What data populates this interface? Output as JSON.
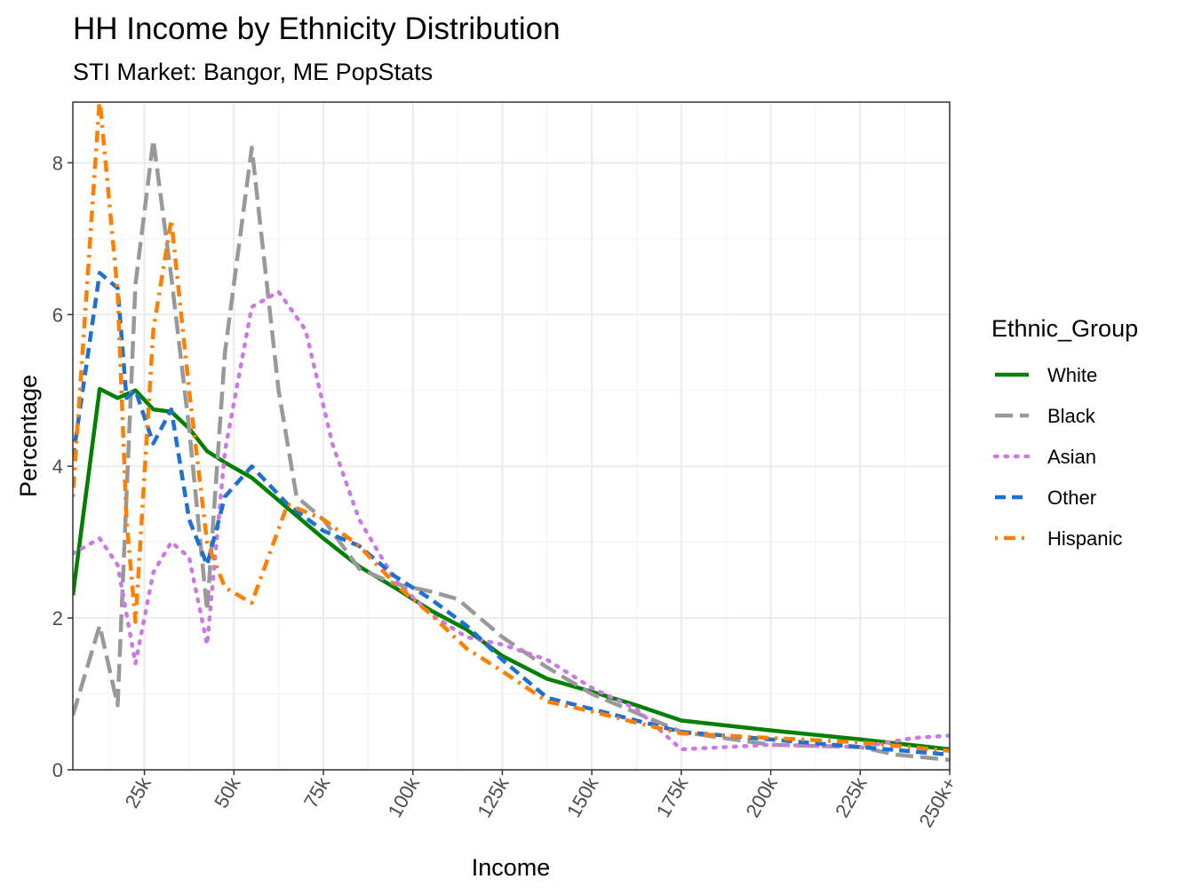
{
  "chart_data": {
    "type": "line",
    "title": "HH Income by Ethnicity Distribution",
    "subtitle": "STI Market: Bangor, ME PopStats",
    "xlabel": "Income",
    "ylabel": "Percentage",
    "xlim": [
      5,
      250
    ],
    "ylim": [
      0,
      8.8
    ],
    "x_ticks": [
      25,
      50,
      75,
      100,
      125,
      150,
      175,
      200,
      225,
      250
    ],
    "x_tick_labels": [
      "25k",
      "50k",
      "75k",
      "100k",
      "125k",
      "150k",
      "175k",
      "200k",
      "225k",
      "250k+"
    ],
    "y_ticks": [
      0,
      2,
      4,
      6,
      8
    ],
    "y_tick_labels": [
      "0",
      "2",
      "4",
      "6",
      "8"
    ],
    "grid": true,
    "legend": {
      "title": "Ethnic_Group",
      "position": "right"
    },
    "series": [
      {
        "name": "White",
        "color": "#008000",
        "dash": "solid",
        "points": [
          [
            5,
            2.3
          ],
          [
            12.5,
            5.02
          ],
          [
            17.5,
            4.9
          ],
          [
            22.5,
            5.0
          ],
          [
            27.5,
            4.75
          ],
          [
            32.5,
            4.72
          ],
          [
            37.5,
            4.5
          ],
          [
            42.5,
            4.2
          ],
          [
            47.5,
            4.05
          ],
          [
            55,
            3.85
          ],
          [
            65,
            3.45
          ],
          [
            75,
            3.05
          ],
          [
            85,
            2.68
          ],
          [
            95,
            2.4
          ],
          [
            105,
            2.1
          ],
          [
            115,
            1.85
          ],
          [
            125,
            1.5
          ],
          [
            137.5,
            1.2
          ],
          [
            150,
            1.03
          ],
          [
            162.5,
            0.85
          ],
          [
            175,
            0.65
          ],
          [
            200,
            0.52
          ],
          [
            225,
            0.4
          ],
          [
            250,
            0.27
          ]
        ]
      },
      {
        "name": "Black",
        "color": "#999999",
        "dash": "longdash",
        "points": [
          [
            5,
            0.72
          ],
          [
            12.5,
            1.9
          ],
          [
            17.5,
            0.85
          ],
          [
            22.5,
            6.4
          ],
          [
            27.5,
            8.3
          ],
          [
            32.5,
            6.5
          ],
          [
            37.5,
            4.5
          ],
          [
            42.5,
            2.1
          ],
          [
            47.5,
            5.5
          ],
          [
            55,
            8.2
          ],
          [
            62.5,
            5.0
          ],
          [
            67.5,
            3.6
          ],
          [
            75,
            3.3
          ],
          [
            85,
            2.65
          ],
          [
            95,
            2.45
          ],
          [
            105,
            2.35
          ],
          [
            112.5,
            2.25
          ],
          [
            125,
            1.75
          ],
          [
            137.5,
            1.35
          ],
          [
            150,
            1.0
          ],
          [
            162.5,
            0.75
          ],
          [
            175,
            0.5
          ],
          [
            200,
            0.33
          ],
          [
            225,
            0.3
          ],
          [
            235,
            0.2
          ],
          [
            250,
            0.13
          ]
        ]
      },
      {
        "name": "Asian",
        "color": "#CC79E6",
        "dash": "dotted",
        "points": [
          [
            5,
            2.85
          ],
          [
            12.5,
            3.05
          ],
          [
            17.5,
            2.7
          ],
          [
            22.5,
            1.4
          ],
          [
            27.5,
            2.6
          ],
          [
            32.5,
            3.0
          ],
          [
            37.5,
            2.8
          ],
          [
            42.5,
            1.65
          ],
          [
            47.5,
            4.2
          ],
          [
            55,
            6.1
          ],
          [
            62.5,
            6.3
          ],
          [
            70,
            5.8
          ],
          [
            77.5,
            4.3
          ],
          [
            85,
            3.3
          ],
          [
            95,
            2.5
          ],
          [
            105,
            2.05
          ],
          [
            115,
            1.75
          ],
          [
            125,
            1.65
          ],
          [
            137.5,
            1.45
          ],
          [
            150,
            1.08
          ],
          [
            162.5,
            0.8
          ],
          [
            175,
            0.27
          ],
          [
            187.5,
            0.3
          ],
          [
            200,
            0.33
          ],
          [
            225,
            0.3
          ],
          [
            240,
            0.42
          ],
          [
            250,
            0.45
          ]
        ]
      },
      {
        "name": "Other",
        "color": "#1F70D1",
        "dash": "dashed",
        "points": [
          [
            5,
            4.1
          ],
          [
            12.5,
            6.55
          ],
          [
            17.5,
            6.35
          ],
          [
            20,
            4.9
          ],
          [
            22.5,
            5.0
          ],
          [
            27.5,
            4.3
          ],
          [
            32.5,
            4.75
          ],
          [
            37.5,
            3.3
          ],
          [
            42.5,
            2.7
          ],
          [
            47.5,
            3.6
          ],
          [
            55,
            4.0
          ],
          [
            65,
            3.5
          ],
          [
            75,
            3.15
          ],
          [
            85,
            2.95
          ],
          [
            95,
            2.55
          ],
          [
            105,
            2.25
          ],
          [
            115,
            1.9
          ],
          [
            125,
            1.45
          ],
          [
            137.5,
            0.95
          ],
          [
            150,
            0.8
          ],
          [
            162.5,
            0.65
          ],
          [
            175,
            0.5
          ],
          [
            200,
            0.4
          ],
          [
            225,
            0.3
          ],
          [
            250,
            0.2
          ]
        ]
      },
      {
        "name": "Hispanic",
        "color": "#FF8000",
        "dash": "dotdash",
        "points": [
          [
            5,
            3.6
          ],
          [
            12.5,
            8.85
          ],
          [
            17.5,
            6.3
          ],
          [
            20,
            3.3
          ],
          [
            22.5,
            1.95
          ],
          [
            27.5,
            5.8
          ],
          [
            32.5,
            7.25
          ],
          [
            37.5,
            5.0
          ],
          [
            42.5,
            3.0
          ],
          [
            47.5,
            2.4
          ],
          [
            55,
            2.2
          ],
          [
            65,
            3.5
          ],
          [
            75,
            3.3
          ],
          [
            85,
            2.95
          ],
          [
            95,
            2.45
          ],
          [
            105,
            2.05
          ],
          [
            115,
            1.6
          ],
          [
            125,
            1.3
          ],
          [
            137.5,
            0.9
          ],
          [
            150,
            0.77
          ],
          [
            162.5,
            0.62
          ],
          [
            175,
            0.48
          ],
          [
            200,
            0.42
          ],
          [
            225,
            0.36
          ],
          [
            250,
            0.25
          ]
        ]
      }
    ]
  }
}
